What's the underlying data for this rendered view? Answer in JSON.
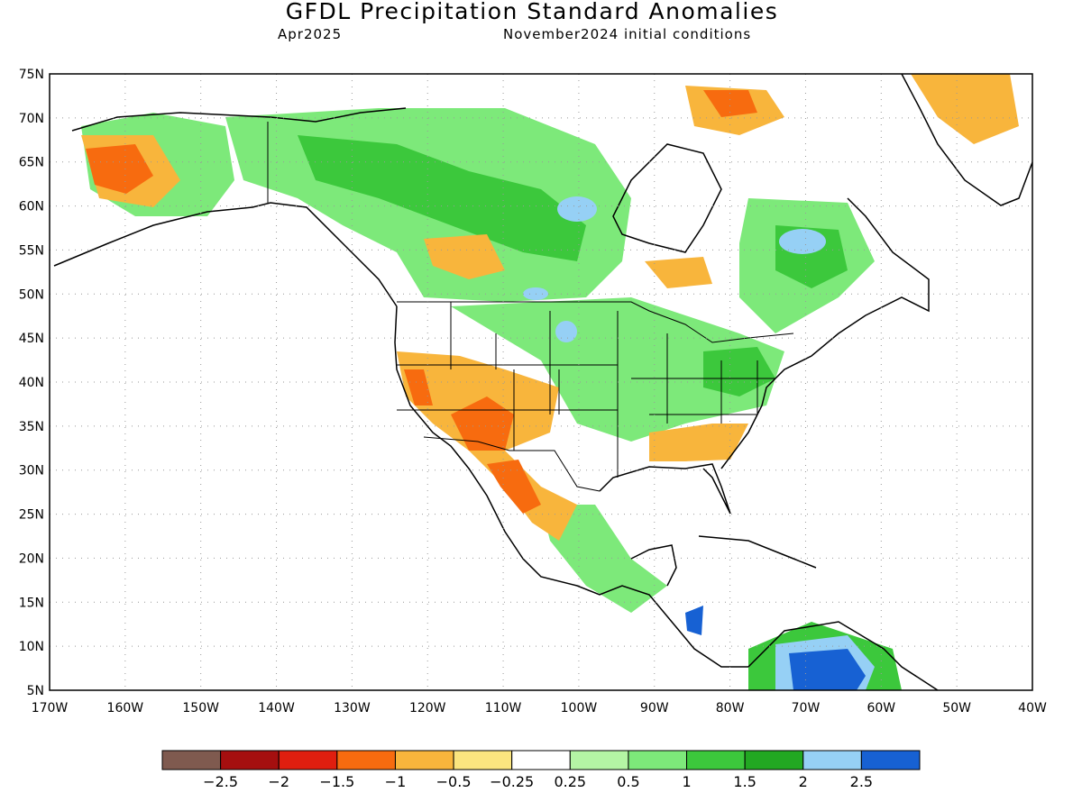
{
  "title": "GFDL Precipitation Standard Anomalies",
  "subtitle_left": "Apr2025",
  "subtitle_right": "November2024 initial conditions",
  "map": {
    "lon_range": [
      -170,
      -40
    ],
    "lat_range": [
      5,
      75
    ],
    "lat_labels": [
      "75N",
      "70N",
      "65N",
      "60N",
      "55N",
      "50N",
      "45N",
      "40N",
      "35N",
      "30N",
      "25N",
      "20N",
      "15N",
      "10N",
      "5N"
    ],
    "lon_labels": [
      "170W",
      "160W",
      "150W",
      "140W",
      "130W",
      "120W",
      "110W",
      "100W",
      "90W",
      "80W",
      "70W",
      "60W",
      "50W",
      "40W"
    ],
    "grid": true
  },
  "colorbar": {
    "colors": [
      "#7f5a4f",
      "#a50f0f",
      "#e01e0f",
      "#f76b0f",
      "#f8b53c",
      "#fbe57f",
      "#ffffff",
      "#b4f5a4",
      "#7de97a",
      "#3cc83c",
      "#22a822",
      "#96d0f5",
      "#1761d3"
    ],
    "labels": [
      "−2.5",
      "−2",
      "−1.5",
      "−1",
      "−0.5",
      "−0.25",
      "0.25",
      "0.5",
      "1",
      "1.5",
      "2",
      "2.5"
    ]
  }
}
